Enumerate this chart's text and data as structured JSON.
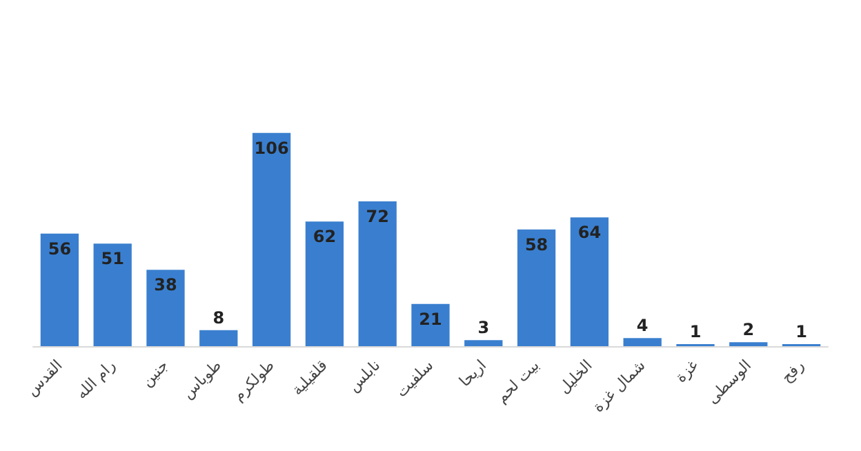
{
  "chart_data": {
    "type": "bar",
    "categories": [
      "القدس",
      "رام الله",
      "جنين",
      "طوباس",
      "طولكرم",
      "قلقيلية",
      "نابلس",
      "سلفيت",
      "اريحا",
      "بيت لحم",
      "الخليل",
      "شمال غزة",
      "غزة",
      "الوسطى",
      "رفح"
    ],
    "values": [
      56,
      51,
      38,
      8,
      106,
      62,
      72,
      21,
      3,
      58,
      64,
      4,
      1,
      2,
      1
    ],
    "color": "#3a7fcf",
    "data_labels": true
  }
}
